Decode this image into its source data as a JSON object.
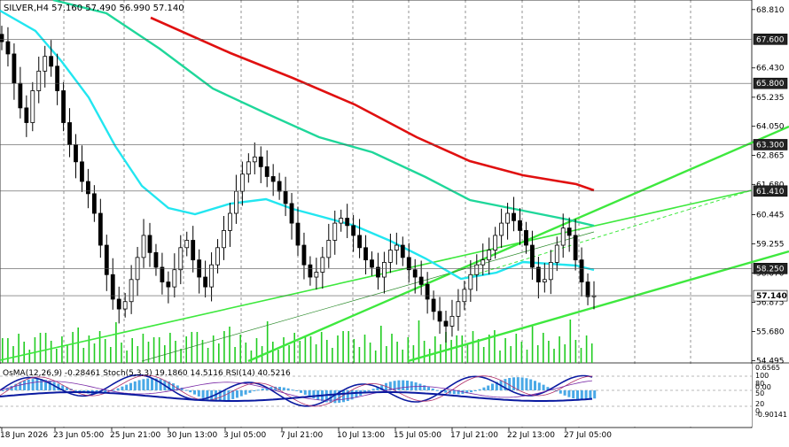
{
  "title": "SILVER,H4  57.160 57.490 56.990 57.140",
  "colors": {
    "background": "#ffffff",
    "grid": "#000000",
    "candle": "#000000",
    "ema_fast": "#22e6f0",
    "ema_mid": "#1fd79a",
    "ema_slow": "#e01010",
    "channel": "#3ee83e",
    "volume": "#22cc22",
    "osma": "#49a8e6",
    "stoch_main": "#0a1aa0",
    "stoch_signal": "#b0306a",
    "rsi": "#7a2aa6"
  },
  "price_axis": {
    "ticks": [
      "68.810",
      "66.430",
      "65.235",
      "64.050",
      "62.865",
      "61.680",
      "60.445",
      "59.255",
      "58.070",
      "56.875",
      "55.680",
      "54.495"
    ],
    "labels": [
      {
        "text": "67.600",
        "value": 67.6
      },
      {
        "text": "65.800",
        "value": 65.8
      },
      {
        "text": "63.300",
        "value": 63.3
      },
      {
        "text": "61.410",
        "value": 61.41
      },
      {
        "text": "58.250",
        "value": 58.25
      },
      {
        "text": "57.140",
        "value": 57.14,
        "current": true
      }
    ]
  },
  "indicator_panel": {
    "title": "OsMA(12,26,9) -0.28461  Stoch(5,3,3) 19.1860 14.5116  RSI(14) 40.5216",
    "right_labels": [
      "0.6565",
      "100",
      "80",
      "0.00",
      "50",
      "20",
      "0",
      "-0.90141"
    ]
  },
  "time_axis": [
    "18 Jun 2026",
    "23 Jun 05:00",
    "25 Jun 21:00",
    "30 Jun 13:00",
    "3 Jul 05:00",
    "7 Jul 21:00",
    "10 Jul 13:00",
    "15 Jul 05:00",
    "17 Jul 21:00",
    "22 Jul 13:00",
    "27 Jul 05:00"
  ],
  "chart_data": {
    "type": "candlestick",
    "symbol": "SILVER",
    "timeframe": "H4",
    "ylim": [
      54.4,
      69.2
    ],
    "current_price": 57.14,
    "closes": [
      67.5,
      67.0,
      65.8,
      64.8,
      64.2,
      65.5,
      66.3,
      66.9,
      66.5,
      65.5,
      64.2,
      63.3,
      62.6,
      61.8,
      61.3,
      60.5,
      59.2,
      58.0,
      57.0,
      56.6,
      56.9,
      57.8,
      58.7,
      59.6,
      58.9,
      58.3,
      57.7,
      57.5,
      58.2,
      59.1,
      59.4,
      58.6,
      57.9,
      57.5,
      58.4,
      59.1,
      59.8,
      60.5,
      61.4,
      62.1,
      62.6,
      62.8,
      62.4,
      62.0,
      61.8,
      61.4,
      60.9,
      60.1,
      59.2,
      58.4,
      57.9,
      58.1,
      58.7,
      59.4,
      60.1,
      60.3,
      60.0,
      59.6,
      59.1,
      58.6,
      58.3,
      57.9,
      58.5,
      59.0,
      59.2,
      58.7,
      58.2,
      57.9,
      57.6,
      57.0,
      56.5,
      56.1,
      55.9,
      56.3,
      56.9,
      57.4,
      58.0,
      58.4,
      58.6,
      59.0,
      59.6,
      60.1,
      60.5,
      60.2,
      59.8,
      59.2,
      58.3,
      57.7,
      57.8,
      58.5,
      59.2,
      59.9,
      59.6,
      58.6,
      57.7,
      57.1,
      57.14
    ]
  }
}
